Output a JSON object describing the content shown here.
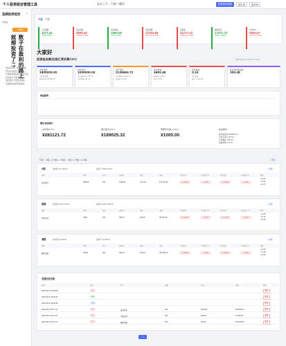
{
  "app": {
    "title": "个人投资组合管理工具"
  },
  "topbar": {
    "search": "云水三千，只取一瓢饮",
    "btn_primary": "投资资讯频道",
    "btn_2": "显示Ali",
    "btn_3": "显示Bit"
  },
  "sidebar": {
    "title": "选择投资组合",
    "close": "×",
    "subtitle": "大家好",
    "add_btn": "+ 新增",
    "vertical_1": "数子在盈利的路上",
    "vertical_2": "就想投资了!?",
    "lines": [
      "『投资有风险，理财需谨慎』",
      "『坚持价值投资 长期持有』",
      "『分散投资降低风险 不可盲目』",
      "『控制仓位 不要满仓操作』",
      "『保持理性 不要追涨杀跌』",
      "『定期复盘总结经验教训』"
    ]
  },
  "market": {
    "tab_1": "大盘",
    "tab_2": "个股",
    "indices": [
      {
        "name": "上证指数",
        "value": "3271.61",
        "change": "-9.56 -0.29%",
        "up": false
      },
      {
        "name": "深证成指",
        "value": "9895.92",
        "change": "+18.32 +0.19%",
        "up": true
      },
      {
        "name": "创业板指",
        "value": "1984.09",
        "change": "-9.19 -0.46%",
        "up": false
      },
      {
        "name": "恒生指数",
        "value": "27264.88",
        "change": "+212.51 +0.79%",
        "up": true
      },
      {
        "name": "道琼斯",
        "value": "41177.22",
        "change": "+165.42 +0.40%",
        "up": true
      },
      {
        "name": "纳斯达克",
        "value": "17471.73",
        "change": "-56.03 -0.32%",
        "up": false
      },
      {
        "name": "标普500",
        "value": "5560.57",
        "change": "+20.31 +0.37%",
        "up": true
      }
    ]
  },
  "summary": {
    "greeting": "大家好",
    "heading": "投资组合概况(按汇率折算CNY)",
    "updated": "更新时间 2024-05-31 17:16:46",
    "cards": [
      {
        "label": "资金总额",
        "value": "1900000.00",
        "sub1": "已投资金额",
        "sub2": "剩余资金 1093481.26"
      },
      {
        "label": "持仓市值",
        "value": "1000000.00",
        "sub1": "持仓成本 187,734.00",
        "sub2": "今日收益 -28,771"
      },
      {
        "label": "资产总值",
        "value": "2135684.72",
        "sub1": "今日收益 +2,031.76",
        "sub2": "总收益 +0.14%"
      },
      {
        "label": "累计收益",
        "value": "4693.48",
        "sub1": "收益率 +0.25%",
        "sub2": "年化 6.97%"
      },
      {
        "label": "持仓收益",
        "value": "2.24",
        "sub1": "今日收益",
        "sub2": "累计 +1,921.90"
      },
      {
        "label": "投资年化收益率",
        "value": "100.48",
        "sub1": "",
        "sub2": ""
      }
    ],
    "chart_title": "收益趋势",
    "stats_title": "增长/投资统计",
    "stats": [
      {
        "label": "总市值(CNY)",
        "value": "¥281121.72"
      },
      {
        "label": "累计盈亏(CNY)",
        "value": "¥189025.32"
      },
      {
        "label": "预期年均收入(CNY)",
        "value": "¥1000.00"
      },
      {
        "label": "投资概况",
        "value": ""
      }
    ],
    "overview_lines": [
      "总市值比例 1000000.00",
      "已持有时长 125.09",
      "日均收益 4720.46",
      "总收益率 14.27%"
    ]
  },
  "groups": {
    "filter_text": "已选：1 A股 + 1 US股 + 1 HK股 · 1 A股 + 1 US股 + 1 HK股",
    "filter_btn": "+ 添加",
    "table_headers": [
      "名称",
      "代码",
      "持仓",
      "成本价",
      "现价",
      "市值",
      "今日盈亏",
      "今日盈亏%",
      "持仓盈亏",
      "持仓盈亏%",
      "操作"
    ],
    "list": [
      {
        "name": "A股",
        "meta1": "总市值 ¥34,780.00",
        "meta2": "总盈亏 ¥999,780.00",
        "action": "+ 新增",
        "row": [
          "贵州茅台",
          "600519",
          "100",
          "1680.00",
          "1707.00",
          "170,700.00",
          "+2,700.00",
          "+1.61%",
          "+2,700.00",
          "+1.61%"
        ],
        "ops": [
          "▲ 0.10",
          "▼ 5.00",
          "▲ 0.73"
        ]
      },
      {
        "name": "美股",
        "meta1": "总市值 ¥4234,780.00",
        "meta2": "总盈亏 ¥3234,780.00",
        "action": "+ 新增",
        "row": [
          "苹果公司",
          "AAPL",
          "200",
          "185.00",
          "192.35",
          "38,470.00",
          "+1,470.00",
          "+3.97%",
          "+1,470.00",
          "+3.97%"
        ],
        "ops": [
          "▲ 3.03",
          "▼ 1.12",
          "▲ 5.03"
        ]
      },
      {
        "name": "港股",
        "meta1": "总市值 ¥1,086.09",
        "meta2": "总盈亏 ¥1,086.09",
        "action": "+ 新增",
        "row": [
          "腾讯控股",
          "00700",
          "500",
          "360.00",
          "375.20",
          "187,600.00",
          "+7,600.00",
          "+4.22%",
          "+7,600.00",
          "+4.22%"
        ],
        "ops": [
          "▲ 2.03",
          "▼ 1.46",
          "▲ 2.65"
        ]
      }
    ]
  },
  "log": {
    "title": "交易历史记录",
    "headers": [
      "日期",
      "类型",
      "资产",
      "数量",
      "单价",
      "金额",
      "操作"
    ],
    "rows": [
      {
        "date": "2024-05-31 16:30:28",
        "type": "买入",
        "asset": "",
        "qty": "",
        "price": "",
        "amount": "",
        "op": "删除"
      },
      {
        "date": "2024-05-31 16:29:40",
        "type": "卖出",
        "asset": "",
        "qty": "",
        "price": "",
        "amount": "",
        "op": "删除"
      },
      {
        "date": "2024-05-31 16:29:39",
        "type": "入金",
        "asset": "",
        "qty": "",
        "price": "",
        "amount": "",
        "op": "删除"
      },
      {
        "date": "2024-05-31 16:17:42",
        "type": "买入",
        "asset": "贵州茅台",
        "qty": "100",
        "price": "1680.00",
        "amount": "168,000.00",
        "op": "删除"
      },
      {
        "date": "2024-05-31 16:17:21",
        "type": "买入",
        "asset": "苹果公司",
        "qty": "200",
        "price": "185.00",
        "amount": "37,000.00",
        "op": "删除"
      },
      {
        "date": "2024-05-31 16:17:01",
        "type": "买入",
        "asset": "腾讯控股",
        "qty": "500",
        "price": "360.00",
        "amount": "180,000.00",
        "op": "删除"
      }
    ]
  },
  "colors": {
    "accent": "#4a6cf7",
    "up": "#e34b4b",
    "down": "#29a745",
    "orange": "#f59c2a"
  }
}
